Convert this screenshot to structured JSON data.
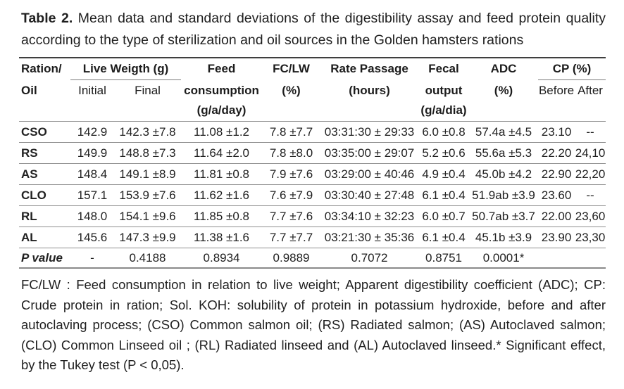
{
  "caption": {
    "label": "Table 2.",
    "text": "Mean data and standard deviations of the digestibility assay and feed protein quality according to the type of sterilization and oil sources in the Golden hamsters rations"
  },
  "table": {
    "header": {
      "ration_line1": "Ration/",
      "ration_line2": "Oil",
      "live_weight": "Live Weigth (g)",
      "initial": "Initial",
      "final": "Final",
      "feed_line1": "Feed",
      "feed_line2": "consumption",
      "feed_line3": "(g/a/day)",
      "fclw_line1": "FC/LW",
      "fclw_line2": "(%)",
      "rate_line1": "Rate Passage",
      "rate_line2": "(hours)",
      "fecal_line1": "Fecal",
      "fecal_line2": "output",
      "fecal_line3": "(g/a/dia)",
      "adc_line1": "ADC",
      "adc_line2": "(%)",
      "cp": "CP (%)",
      "before": "Before",
      "after": "After"
    },
    "rows": [
      {
        "label": "CSO",
        "initial": "142.9",
        "final": "142.3 ±7.8",
        "feed": "11.08 ±1.2",
        "fclw": "7.8 ±7.7",
        "rate": "03:31:30 ± 29:33",
        "fecal": "6.0 ±0.8",
        "adc": "57.4a ±4.5",
        "cp_before": "23.10",
        "cp_after": "--"
      },
      {
        "label": "RS",
        "initial": "149.9",
        "final": "148.8 ±7.3",
        "feed": "11.64 ±2.0",
        "fclw": "7.8 ±8.0",
        "rate": "03:35:00 ± 29:07",
        "fecal": "5.2 ±0.6",
        "adc": "55.6a ±5.3",
        "cp_before": "22.20",
        "cp_after": "24,10"
      },
      {
        "label": "AS",
        "initial": "148.4",
        "final": "149.1 ±8.9",
        "feed": "11.81 ±0.8",
        "fclw": "7.9 ±7.6",
        "rate": "03:29:00 ± 40:46",
        "fecal": "4.9 ±0.4",
        "adc": "45.0b ±4.2",
        "cp_before": "22.90",
        "cp_after": "22,20"
      },
      {
        "label": "CLO",
        "initial": "157.1",
        "final": "153.9 ±7.6",
        "feed": "11.62 ±1.6",
        "fclw": "7.6 ±7.9",
        "rate": "03:30:40 ± 27:48",
        "fecal": "6.1 ±0.4",
        "adc": "51.9ab ±3.9",
        "cp_before": "23.60",
        "cp_after": "--"
      },
      {
        "label": "RL",
        "initial": "148.0",
        "final": "154.1 ±9.6",
        "feed": "11.85 ±0.8",
        "fclw": "7.7 ±7.6",
        "rate": "03:34:10 ± 32:23",
        "fecal": "6.0 ±0.7",
        "adc": "50.7ab ±3.7",
        "cp_before": "22.00",
        "cp_after": "23,60"
      },
      {
        "label": "AL",
        "initial": "145.6",
        "final": "147.3 ±9.9",
        "feed": "11.38 ±1.6",
        "fclw": "7.7 ±7.7",
        "rate": "03:21:30 ± 35:36",
        "fecal": "6.1 ±0.4",
        "adc": "45.1b ±3.9",
        "cp_before": "23.90",
        "cp_after": "23,30"
      }
    ],
    "pvalue_row": {
      "label": "P value",
      "initial": "-",
      "final": "0.4188",
      "feed": "0.8934",
      "fclw": "0.9889",
      "rate": "0.7072",
      "fecal": "0.8751",
      "adc": "0.0001*",
      "cp_before": "",
      "cp_after": ""
    }
  },
  "footnote": "FC/LW : Feed consumption in relation to live weight; Apparent digestibility coefficient (ADC); CP: Crude protein in ration; Sol. KOH: solubility of protein in potassium hydroxide, before and after autoclaving process; (CSO) Common salmon oil; (RS) Radiated salmon; (AS) Autoclaved salmon; (CLO) Common Linseed oil ; (RL) Radiated linseed and (AL) Autoclaved linseed.* Significant effect, by the Tukey test (P < 0,05)."
}
